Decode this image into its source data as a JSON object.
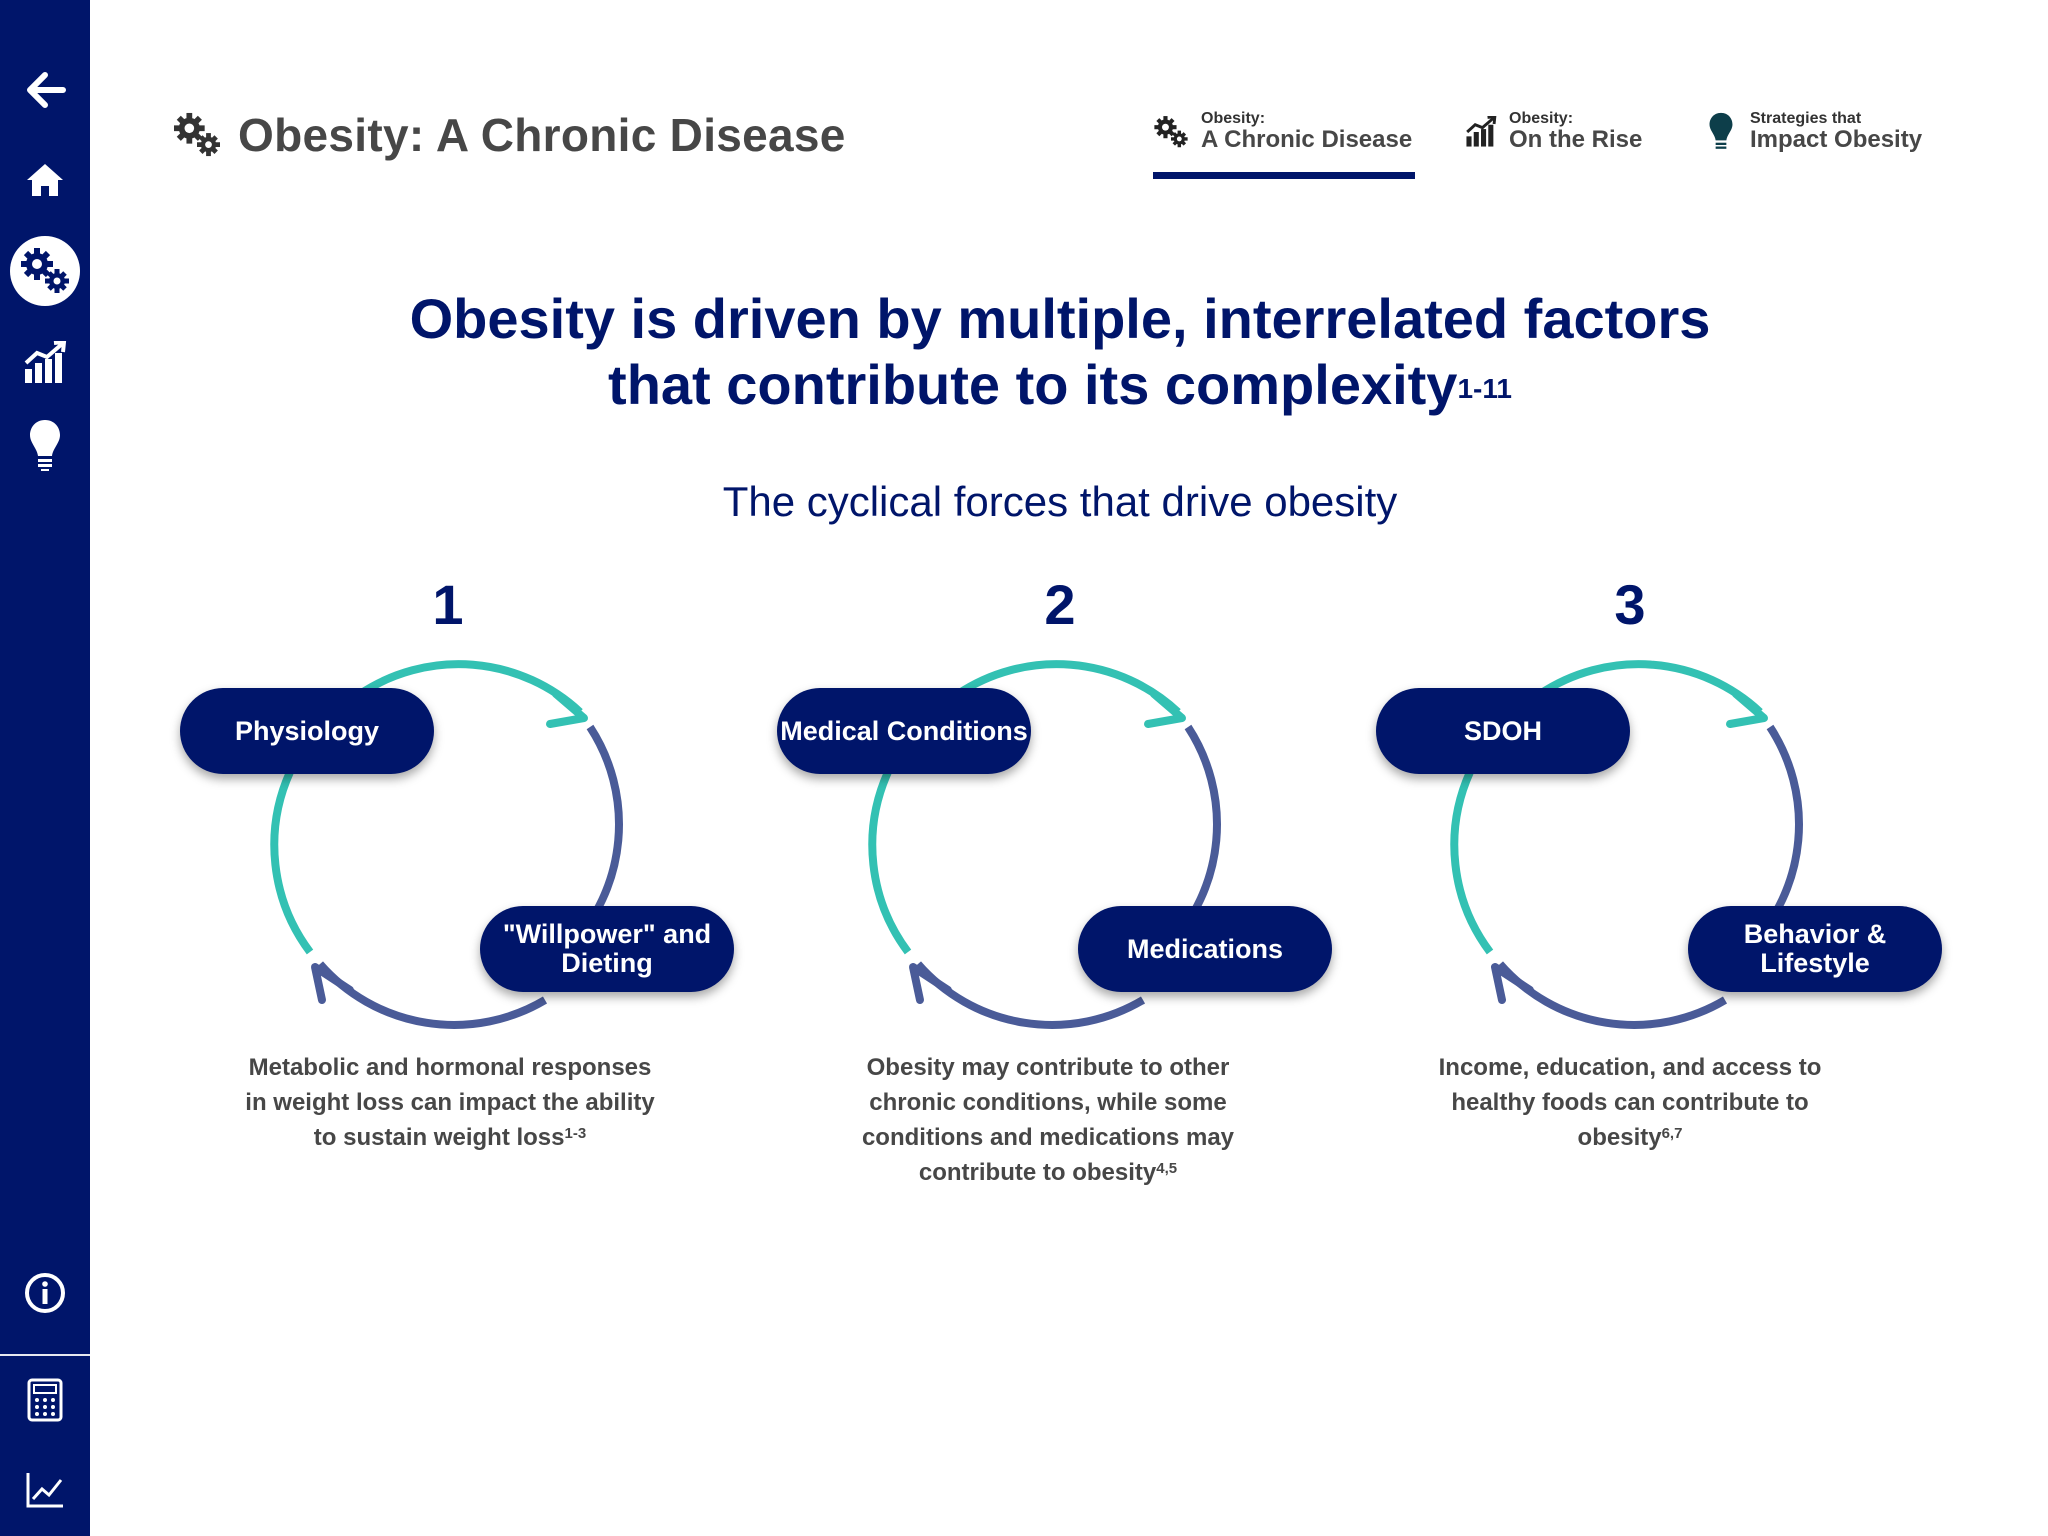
{
  "sidebar": {
    "items": [
      {
        "name": "back-arrow-icon"
      },
      {
        "name": "home-icon"
      },
      {
        "name": "gears-icon",
        "active": true
      },
      {
        "name": "chart-icon"
      },
      {
        "name": "lightbulb-icon"
      },
      {
        "name": "info-icon"
      },
      {
        "name": "calculator-icon"
      },
      {
        "name": "line-chart-icon"
      }
    ]
  },
  "header": {
    "title": "Obesity: A Chronic Disease",
    "tabs": [
      {
        "small": "Obesity:",
        "label": "A Chronic Disease",
        "icon": "gears-icon",
        "active": true
      },
      {
        "small": "Obesity:",
        "label": "On the Rise",
        "icon": "chart-icon"
      },
      {
        "small": "Strategies that",
        "label": "Impact Obesity",
        "icon": "lightbulb-icon"
      }
    ]
  },
  "main": {
    "headline_line1": "Obesity is driven by multiple, interrelated factors",
    "headline_line2": "that contribute to its complexity",
    "headline_ref": "1-11",
    "subheading": "The cyclical forces that drive obesity",
    "cycles": [
      {
        "number": "1",
        "top_label": "Physiology",
        "bottom_label": "\"Willpower\" and Dieting",
        "description": "Metabolic and hormonal responses in weight loss can impact the ability to sustain weight loss",
        "ref": "1-3"
      },
      {
        "number": "2",
        "top_label": "Medical Conditions",
        "bottom_label": "Medications",
        "description": "Obesity may contribute to other chronic conditions, while some conditions and medications may contribute to obesity",
        "ref": "4,5"
      },
      {
        "number": "3",
        "top_label": "SDOH",
        "bottom_label": "Behavior & Lifestyle",
        "description": "Income, education, and access to healthy foods can contribute to obesity",
        "ref": "6,7"
      }
    ]
  },
  "colors": {
    "navy": "#00156a",
    "teal": "#33c1b3",
    "slate_blue": "#4a5b98",
    "gray_text": "#474747"
  }
}
